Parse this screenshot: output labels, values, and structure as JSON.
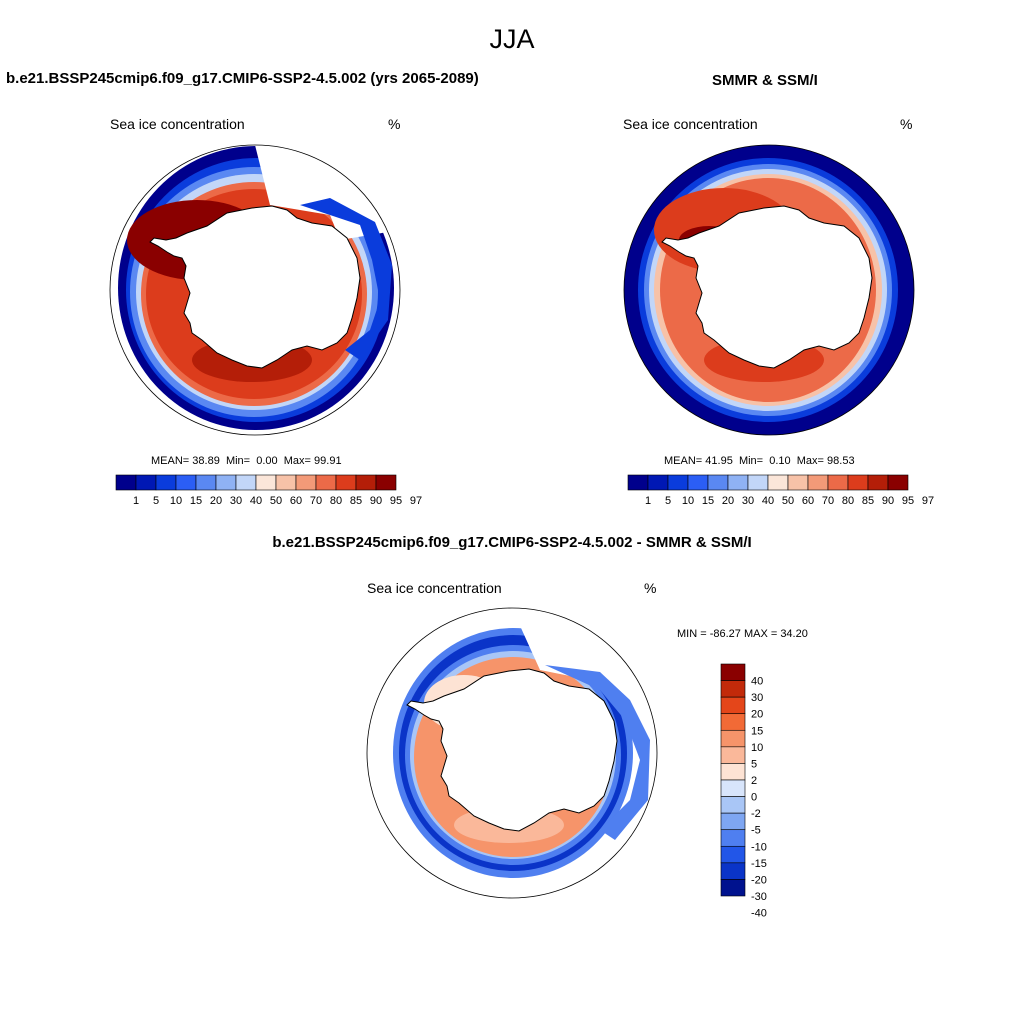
{
  "season": "JJA",
  "colors": {
    "conc_levels": [
      "#00008c",
      "#0018b4",
      "#0a3cdc",
      "#2b5ef5",
      "#5a88f2",
      "#8fb2f4",
      "#c2d6f8",
      "#fbe6d9",
      "#f7c2a8",
      "#f39a78",
      "#ec6a48",
      "#dc3c1c",
      "#b41e08",
      "#8a0000"
    ],
    "diff_levels": [
      "#8a0000",
      "#c22a0a",
      "#e4461a",
      "#f26a36",
      "#f6946a",
      "#fab89a",
      "#fde3d4",
      "#d8e5fb",
      "#a9c6f6",
      "#7ea6f2",
      "#4f7ff0",
      "#2256e8",
      "#0a34c8",
      "#00128e"
    ],
    "coast": "#000000",
    "circle": "#000000"
  },
  "panels": {
    "model": {
      "title": "b.e21.BSSP245cmip6.f09_g17.CMIP6-SSP2-4.5.002 (yrs 2065-2089)",
      "variable": "Sea ice concentration",
      "units": "%",
      "mean_label": "MEAN=",
      "mean": "38.89",
      "min_label": "Min=",
      "min": "0.00",
      "max_label": "Max=",
      "max": "99.91"
    },
    "obs": {
      "title": "SMMR & SSM/I",
      "variable": "Sea ice concentration",
      "units": "%",
      "mean_label": "MEAN=",
      "mean": "41.95",
      "min_label": "Min=",
      "min": "0.10",
      "max_label": "Max=",
      "max": "98.53"
    },
    "diff": {
      "title": "b.e21.BSSP245cmip6.f09_g17.CMIP6-SSP2-4.5.002 - SMMR & SSM/I",
      "variable": "Sea ice concentration",
      "units": "%",
      "minmax_text": "MIN = -86.27 MAX =  34.20"
    }
  },
  "conc_ticks": [
    "1",
    "5",
    "10",
    "15",
    "20",
    "30",
    "40",
    "50",
    "60",
    "70",
    "80",
    "85",
    "90",
    "95",
    "97"
  ],
  "diff_ticks": [
    "40",
    "30",
    "20",
    "15",
    "10",
    "5",
    "2",
    "0",
    "-2",
    "-5",
    "-10",
    "-15",
    "-20",
    "-30",
    "-40"
  ]
}
